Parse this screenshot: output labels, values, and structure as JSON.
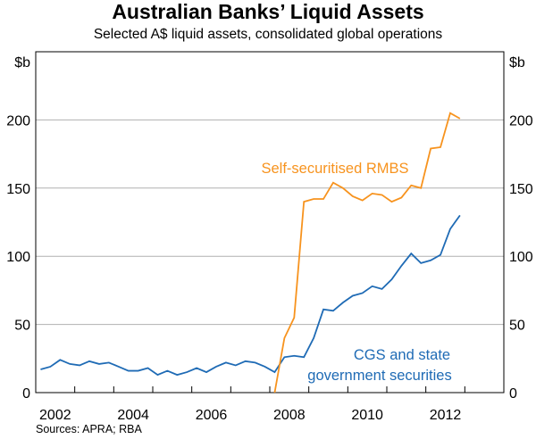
{
  "chart_data": {
    "type": "line",
    "title": "Australian Banks’ Liquid Assets",
    "subtitle": "Selected A$ liquid assets, consolidated global operations",
    "ylabel_left": "$b",
    "ylabel_right": "$b",
    "ylim": [
      0,
      250
    ],
    "yticks": [
      0,
      50,
      100,
      150,
      200
    ],
    "xlim": [
      2002,
      2014
    ],
    "xticks": [
      "2002",
      "2004",
      "2006",
      "2008",
      "2010",
      "2012"
    ],
    "grid": true,
    "frequency": "quarterly",
    "series": [
      {
        "name": "CGS and state government securities",
        "label_lines": [
          "CGS and state",
          "government securities"
        ],
        "color": "#1f6bb5",
        "start": "2002-Q1",
        "values": [
          17,
          19,
          24,
          21,
          20,
          23,
          21,
          22,
          19,
          16,
          16,
          18,
          13,
          16,
          13,
          15,
          18,
          15,
          19,
          22,
          20,
          23,
          22,
          19,
          15,
          26,
          27,
          26,
          40,
          61,
          60,
          66,
          71,
          73,
          78,
          76,
          83,
          93,
          102,
          95,
          97,
          101,
          120,
          130
        ]
      },
      {
        "name": "Self-securitised RMBS",
        "label_lines": [
          "Self-securitised RMBS"
        ],
        "color": "#f7931e",
        "start": "2008-Q1",
        "values": [
          0,
          40,
          55,
          140,
          142,
          142,
          154,
          150,
          144,
          141,
          146,
          145,
          140,
          143,
          152,
          150,
          179,
          180,
          205,
          201
        ]
      }
    ],
    "source": "Sources: APRA; RBA"
  }
}
